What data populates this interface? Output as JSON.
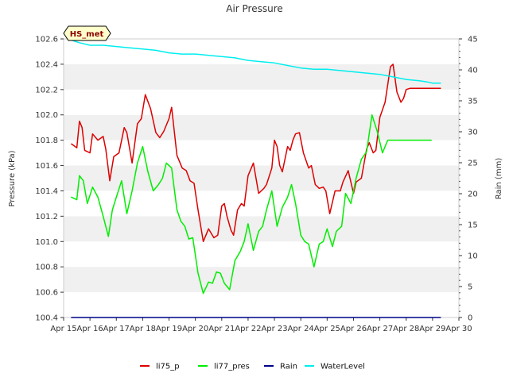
{
  "chart_data": {
    "type": "line",
    "title": "Air Pressure",
    "xlabel": "",
    "ylabel": "Pressure (kPa)",
    "y2label": "Rain (mm)",
    "badge": "HS_met",
    "legend_position": "bottom",
    "grid": "alternating horizontal bands",
    "x_ticks": [
      "Apr 15",
      "Apr 16",
      "Apr 17",
      "Apr 18",
      "Apr 19",
      "Apr 20",
      "Apr 21",
      "Apr 22",
      "Apr 23",
      "Apr 24",
      "Apr 25",
      "Apr 26",
      "Apr 27",
      "Apr 28",
      "Apr 29",
      "Apr 30"
    ],
    "xlim": [
      0,
      15
    ],
    "ylim": [
      100.4,
      102.6
    ],
    "y_ticks": [
      "100.4",
      "100.6",
      "100.8",
      "101.0",
      "101.2",
      "101.4",
      "101.6",
      "101.8",
      "102.0",
      "102.2",
      "102.4",
      "102.6"
    ],
    "y2lim": [
      0,
      45
    ],
    "y2_ticks": [
      "0",
      "5",
      "10",
      "15",
      "20",
      "25",
      "30",
      "35",
      "40",
      "45"
    ],
    "series": [
      {
        "name": "li75_p",
        "axis": "left",
        "color": "#dd0000",
        "x": [
          0.3,
          0.5,
          0.6,
          0.7,
          0.8,
          1.0,
          1.1,
          1.3,
          1.5,
          1.6,
          1.75,
          1.9,
          2.1,
          2.3,
          2.4,
          2.6,
          2.8,
          2.95,
          3.1,
          3.3,
          3.5,
          3.65,
          3.8,
          4.0,
          4.1,
          4.3,
          4.5,
          4.65,
          4.8,
          4.95,
          5.1,
          5.3,
          5.5,
          5.7,
          5.85,
          6.0,
          6.1,
          6.2,
          6.35,
          6.45,
          6.6,
          6.75,
          6.85,
          7.0,
          7.2,
          7.4,
          7.5,
          7.6,
          7.7,
          7.9,
          8.0,
          8.1,
          8.2,
          8.3,
          8.5,
          8.6,
          8.7,
          8.8,
          8.95,
          9.1,
          9.3,
          9.4,
          9.55,
          9.7,
          9.85,
          9.95,
          10.1,
          10.3,
          10.5,
          10.6,
          10.8,
          11.0,
          11.1,
          11.3,
          11.5,
          11.6,
          11.75,
          11.85,
          12.0,
          12.2,
          12.4,
          12.5,
          12.65,
          12.8,
          12.9,
          13.0,
          13.15,
          13.3,
          13.5,
          13.65,
          13.75,
          13.9,
          14.05,
          14.2,
          14.3
        ],
        "values": [
          101.77,
          101.74,
          101.95,
          101.9,
          101.72,
          101.7,
          101.85,
          101.8,
          101.83,
          101.73,
          101.48,
          101.67,
          101.7,
          101.9,
          101.86,
          101.62,
          101.93,
          101.97,
          102.16,
          102.05,
          101.86,
          101.82,
          101.87,
          101.97,
          102.06,
          101.68,
          101.58,
          101.56,
          101.48,
          101.46,
          101.25,
          101.0,
          101.1,
          101.03,
          101.05,
          101.28,
          101.3,
          101.2,
          101.09,
          101.05,
          101.25,
          101.3,
          101.28,
          101.52,
          101.62,
          101.38,
          101.4,
          101.42,
          101.45,
          101.58,
          101.8,
          101.75,
          101.6,
          101.55,
          101.75,
          101.72,
          101.8,
          101.85,
          101.86,
          101.7,
          101.58,
          101.6,
          101.45,
          101.42,
          101.43,
          101.4,
          101.22,
          101.4,
          101.4,
          101.47,
          101.56,
          101.38,
          101.47,
          101.5,
          101.73,
          101.78,
          101.7,
          101.72,
          101.98,
          102.1,
          102.38,
          102.4,
          102.18,
          102.1,
          102.13,
          102.2,
          102.21,
          102.21,
          102.21,
          102.21,
          102.21,
          102.21,
          102.21,
          102.21,
          102.21
        ]
      },
      {
        "name": "li77_pres",
        "axis": "left",
        "color": "#00ee00",
        "x": [
          0.3,
          0.5,
          0.6,
          0.75,
          0.9,
          1.1,
          1.3,
          1.5,
          1.7,
          1.85,
          2.0,
          2.2,
          2.4,
          2.6,
          2.8,
          3.0,
          3.2,
          3.4,
          3.6,
          3.75,
          3.9,
          4.1,
          4.3,
          4.45,
          4.6,
          4.75,
          4.9,
          5.1,
          5.3,
          5.5,
          5.65,
          5.8,
          5.95,
          6.1,
          6.3,
          6.5,
          6.7,
          6.85,
          7.0,
          7.2,
          7.4,
          7.55,
          7.7,
          7.9,
          8.1,
          8.3,
          8.5,
          8.65,
          8.8,
          9.0,
          9.15,
          9.3,
          9.5,
          9.7,
          9.85,
          10.0,
          10.2,
          10.35,
          10.55,
          10.7,
          10.9,
          11.1,
          11.3,
          11.5,
          11.7,
          11.9,
          12.1,
          12.3,
          12.5,
          12.7,
          12.9,
          13.1,
          13.3,
          13.5,
          13.65,
          13.8,
          13.95
        ],
        "values": [
          101.35,
          101.33,
          101.52,
          101.48,
          101.3,
          101.43,
          101.35,
          101.2,
          101.04,
          101.25,
          101.35,
          101.48,
          101.22,
          101.4,
          101.62,
          101.75,
          101.55,
          101.4,
          101.45,
          101.5,
          101.62,
          101.58,
          101.25,
          101.16,
          101.12,
          101.02,
          101.03,
          100.75,
          100.59,
          100.68,
          100.67,
          100.76,
          100.75,
          100.67,
          100.62,
          100.85,
          100.92,
          101.0,
          101.14,
          100.93,
          101.08,
          101.12,
          101.25,
          101.4,
          101.12,
          101.27,
          101.35,
          101.45,
          101.3,
          101.05,
          101.0,
          100.98,
          100.8,
          100.98,
          101.0,
          101.1,
          100.96,
          101.08,
          101.12,
          101.38,
          101.3,
          101.5,
          101.65,
          101.71,
          102.0,
          101.87,
          101.7,
          101.8,
          101.8,
          101.8,
          101.8,
          101.8,
          101.8,
          101.8,
          101.8,
          101.8,
          101.8
        ]
      },
      {
        "name": "Rain",
        "axis": "right",
        "color": "#00008b",
        "x": [
          0.3,
          14.3
        ],
        "values": [
          0,
          0
        ]
      },
      {
        "name": "WaterLevel",
        "axis": "left",
        "color": "#00eeee",
        "x": [
          0.3,
          0.6,
          1.0,
          1.5,
          2.0,
          2.5,
          3.0,
          3.5,
          4.0,
          4.5,
          5.0,
          5.5,
          6.0,
          6.5,
          7.0,
          7.5,
          8.0,
          8.5,
          9.0,
          9.5,
          10.0,
          10.5,
          11.0,
          11.5,
          12.0,
          12.5,
          13.0,
          13.5,
          13.8,
          14.0,
          14.3
        ],
        "values": [
          102.59,
          102.57,
          102.55,
          102.55,
          102.54,
          102.53,
          102.52,
          102.51,
          102.49,
          102.48,
          102.48,
          102.47,
          102.46,
          102.45,
          102.43,
          102.42,
          102.41,
          102.39,
          102.37,
          102.36,
          102.36,
          102.35,
          102.34,
          102.33,
          102.32,
          102.3,
          102.28,
          102.27,
          102.26,
          102.25,
          102.25
        ]
      }
    ]
  }
}
